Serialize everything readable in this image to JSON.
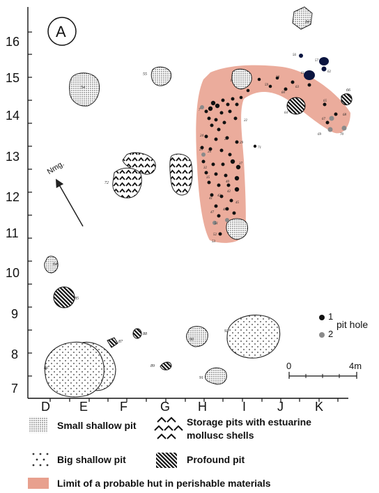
{
  "panel_label": "A",
  "north_label": "Nmg.",
  "y_ticks": [
    "16",
    "15",
    "14",
    "13",
    "12",
    "11",
    "10",
    "9",
    "8",
    "7"
  ],
  "x_ticks": [
    "D",
    "E",
    "F",
    "G",
    "H",
    "I",
    "J",
    "K"
  ],
  "scale": {
    "start": "0",
    "end": "4m"
  },
  "pit_hole_legend": {
    "items": [
      {
        "num": "1",
        "color": "#111111"
      },
      {
        "num": "2",
        "color": "#8a8a8a"
      }
    ],
    "label": "pit hole"
  },
  "legend": {
    "small_shallow": "Small shallow pit",
    "storage": "Storage pits with estuarine mollusc shells",
    "storage_line1": "Storage pits with estuarine",
    "storage_line2": "mollusc shells",
    "big_shallow": "Big shallow pit",
    "profound": "Profound pit",
    "hut": "Limit of a probable hut in perishable materials"
  },
  "colors": {
    "hut": "#e8a08e",
    "pit_dark": "#111111",
    "pit_grey": "#8a8a8a",
    "pit_blue": "#0b1540"
  },
  "features": [
    {
      "num": "84",
      "type": "small-shallow"
    },
    {
      "num": "55",
      "type": "small-shallow"
    },
    {
      "num": "54",
      "type": "small-shallow"
    },
    {
      "num": "64",
      "type": "small-shallow"
    },
    {
      "num": "90",
      "type": "small-shallow"
    },
    {
      "num": "91",
      "type": "small-shallow"
    },
    {
      "num": "92",
      "type": "big-shallow"
    },
    {
      "num": "86",
      "type": "big-shallow"
    },
    {
      "num": "85",
      "type": "profound"
    },
    {
      "num": "87",
      "type": "profound"
    },
    {
      "num": "88",
      "type": "profound"
    },
    {
      "num": "89",
      "type": "profound"
    },
    {
      "num": "66",
      "type": "profound"
    },
    {
      "num": "72",
      "type": "storage"
    }
  ]
}
